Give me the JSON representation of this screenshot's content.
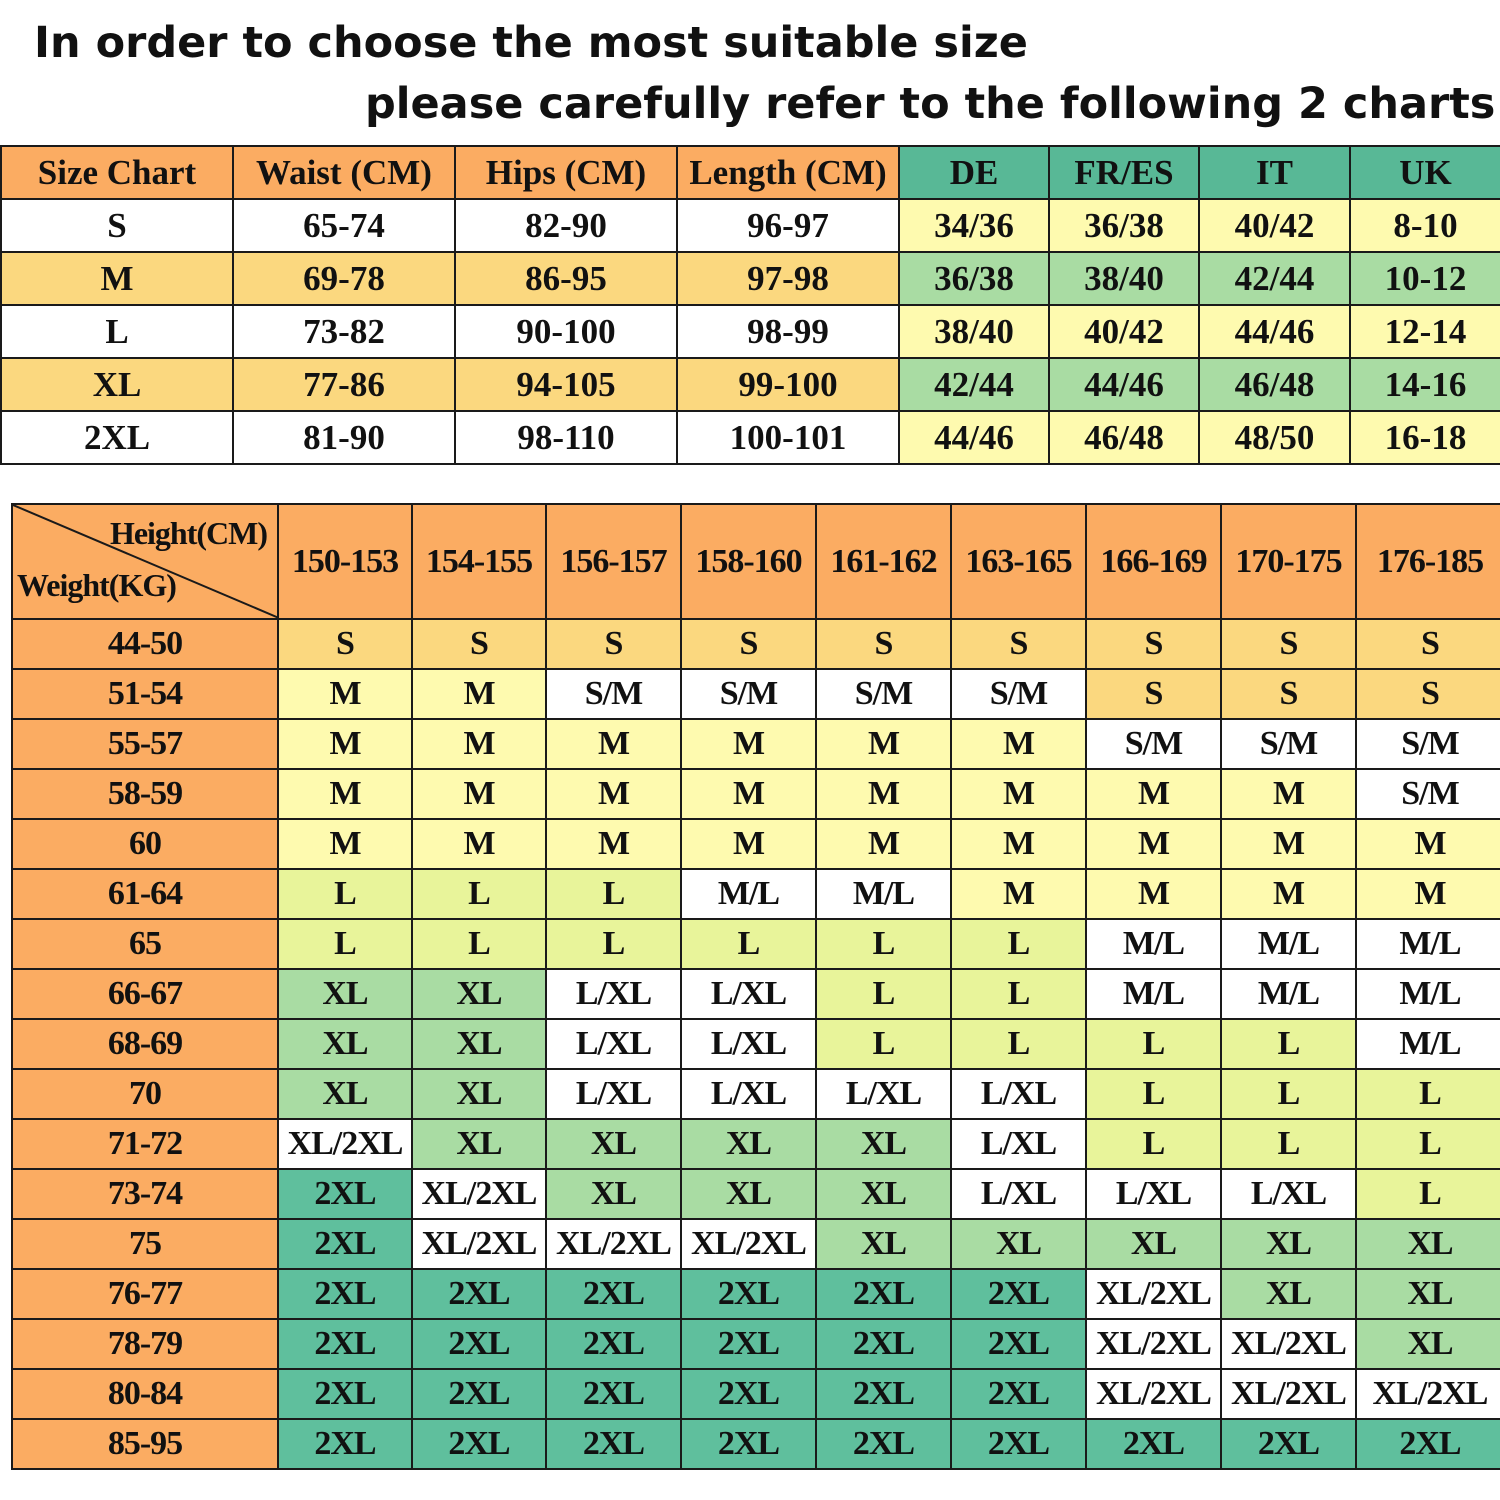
{
  "heading": {
    "line1": "In order to choose the most suitable size",
    "line2": "please carefully refer to the following 2 charts"
  },
  "chart_data": [
    {
      "type": "table",
      "columns": [
        "Size Chart",
        "Waist (CM)",
        "Hips (CM)",
        "Length (CM)",
        "DE",
        "FR/ES",
        "IT",
        "UK"
      ],
      "rows": [
        [
          "S",
          "65-74",
          "82-90",
          "96-97",
          "34/36",
          "36/38",
          "40/42",
          "8-10"
        ],
        [
          "M",
          "69-78",
          "86-95",
          "97-98",
          "36/38",
          "38/40",
          "42/44",
          "10-12"
        ],
        [
          "L",
          "73-82",
          "90-100",
          "98-99",
          "38/40",
          "40/42",
          "44/46",
          "12-14"
        ],
        [
          "XL",
          "77-86",
          "94-105",
          "99-100",
          "42/44",
          "44/46",
          "46/48",
          "14-16"
        ],
        [
          "2XL",
          "81-90",
          "98-110",
          "100-101",
          "44/46",
          "46/48",
          "48/50",
          "16-18"
        ]
      ]
    },
    {
      "type": "table",
      "corner": {
        "column_axis": "Height(CM)",
        "row_axis": "Weight(KG)"
      },
      "heights": [
        "150-153",
        "154-155",
        "156-157",
        "158-160",
        "161-162",
        "163-165",
        "166-169",
        "170-175",
        "176-185"
      ],
      "rows": [
        {
          "weight": "44-50",
          "sizes": [
            "S",
            "S",
            "S",
            "S",
            "S",
            "S",
            "S",
            "S",
            "S"
          ]
        },
        {
          "weight": "51-54",
          "sizes": [
            "M",
            "M",
            "S/M",
            "S/M",
            "S/M",
            "S/M",
            "S",
            "S",
            "S"
          ]
        },
        {
          "weight": "55-57",
          "sizes": [
            "M",
            "M",
            "M",
            "M",
            "M",
            "M",
            "S/M",
            "S/M",
            "S/M"
          ]
        },
        {
          "weight": "58-59",
          "sizes": [
            "M",
            "M",
            "M",
            "M",
            "M",
            "M",
            "M",
            "M",
            "S/M"
          ]
        },
        {
          "weight": "60",
          "sizes": [
            "M",
            "M",
            "M",
            "M",
            "M",
            "M",
            "M",
            "M",
            "M"
          ]
        },
        {
          "weight": "61-64",
          "sizes": [
            "L",
            "L",
            "L",
            "M/L",
            "M/L",
            "M",
            "M",
            "M",
            "M"
          ]
        },
        {
          "weight": "65",
          "sizes": [
            "L",
            "L",
            "L",
            "L",
            "L",
            "L",
            "M/L",
            "M/L",
            "M/L"
          ]
        },
        {
          "weight": "66-67",
          "sizes": [
            "XL",
            "XL",
            "L/XL",
            "L/XL",
            "L",
            "L",
            "M/L",
            "M/L",
            "M/L"
          ]
        },
        {
          "weight": "68-69",
          "sizes": [
            "XL",
            "XL",
            "L/XL",
            "L/XL",
            "L",
            "L",
            "L",
            "L",
            "M/L"
          ]
        },
        {
          "weight": "70",
          "sizes": [
            "XL",
            "XL",
            "L/XL",
            "L/XL",
            "L/XL",
            "L/XL",
            "L",
            "L",
            "L"
          ]
        },
        {
          "weight": "71-72",
          "sizes": [
            "XL/2XL",
            "XL",
            "XL",
            "XL",
            "XL",
            "L/XL",
            "L",
            "L",
            "L"
          ]
        },
        {
          "weight": "73-74",
          "sizes": [
            "2XL",
            "XL/2XL",
            "XL",
            "XL",
            "XL",
            "L/XL",
            "L/XL",
            "L/XL",
            "L"
          ]
        },
        {
          "weight": "75",
          "sizes": [
            "2XL",
            "XL/2XL",
            "XL/2XL",
            "XL/2XL",
            "XL",
            "XL",
            "XL",
            "XL",
            "XL"
          ]
        },
        {
          "weight": "76-77",
          "sizes": [
            "2XL",
            "2XL",
            "2XL",
            "2XL",
            "2XL",
            "2XL",
            "XL/2XL",
            "XL",
            "XL"
          ]
        },
        {
          "weight": "78-79",
          "sizes": [
            "2XL",
            "2XL",
            "2XL",
            "2XL",
            "2XL",
            "2XL",
            "XL/2XL",
            "XL/2XL",
            "XL"
          ]
        },
        {
          "weight": "80-84",
          "sizes": [
            "2XL",
            "2XL",
            "2XL",
            "2XL",
            "2XL",
            "2XL",
            "XL/2XL",
            "XL/2XL",
            "XL/2XL"
          ]
        },
        {
          "weight": "85-95",
          "sizes": [
            "2XL",
            "2XL",
            "2XL",
            "2XL",
            "2XL",
            "2XL",
            "2XL",
            "2XL",
            "2XL"
          ]
        }
      ]
    }
  ],
  "colors": {
    "header_orange": "#fbac62",
    "header_teal": "#58b896",
    "corner_red": "#f47046",
    "size_S": "#fbd87f",
    "size_M": "#fefaaf",
    "size_L": "#e8f49a",
    "size_XL": "#a9dca3",
    "size_2XL": "#5fbf9d",
    "size_mixed": "#ffffff",
    "table1_white_row": "#ffffff",
    "table1_left_alt": "#fbd87f",
    "table1_right": "#fefaaf",
    "table1_right_alt": "#a9dca3"
  }
}
